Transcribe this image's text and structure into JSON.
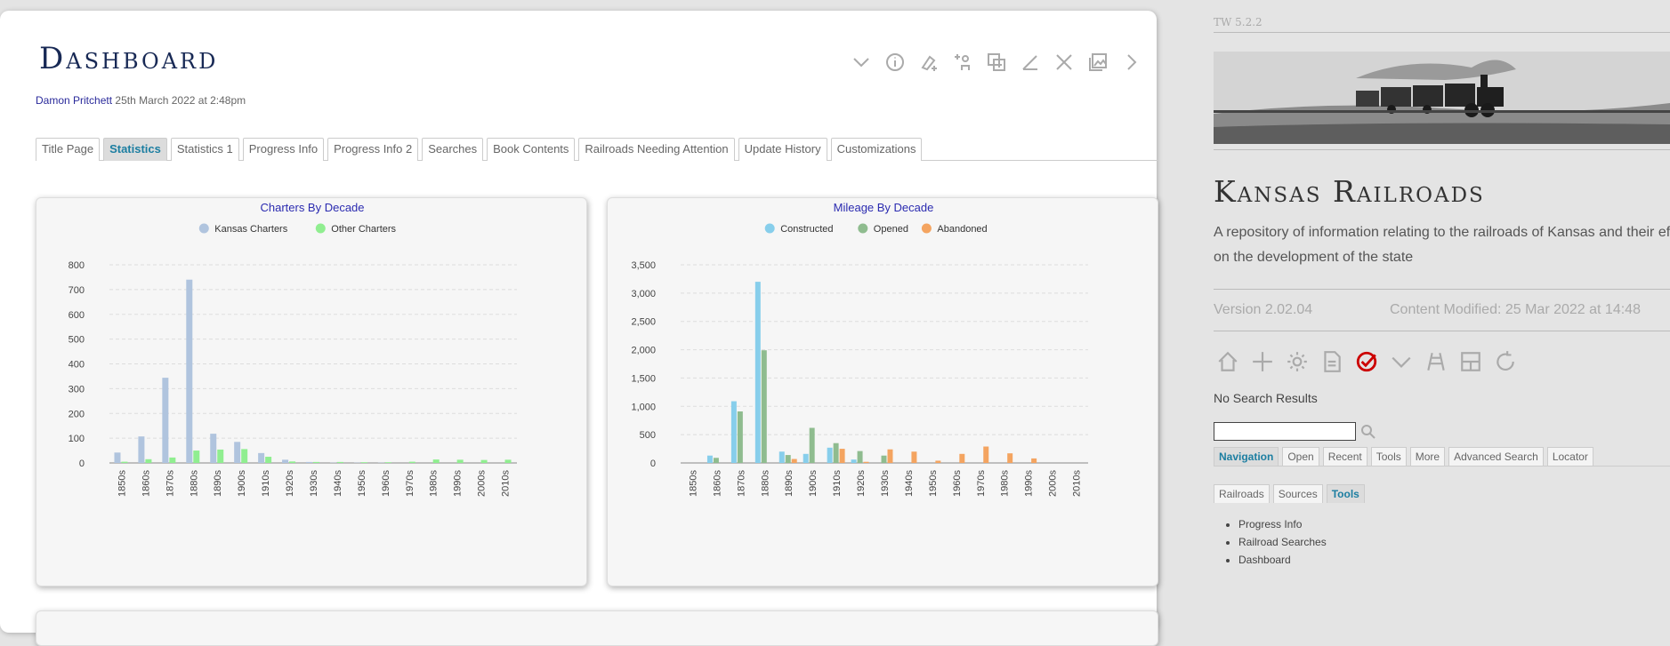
{
  "tiddler": {
    "title": "Dashboard",
    "author": "Damon Pritchett",
    "date": "25th March 2022 at 2:48pm",
    "toolbar": [
      "chevron-down-icon",
      "info-icon",
      "paint-icon",
      "permissions-icon",
      "clone-icon",
      "edit-icon",
      "close-icon",
      "image-icon",
      "chevron-right-icon"
    ],
    "tabs": [
      "Title Page",
      "Statistics",
      "Statistics 1",
      "Progress Info",
      "Progress Info 2",
      "Searches",
      "Book Contents",
      "Railroads Needing Attention",
      "Update History",
      "Customizations"
    ],
    "active_tab": "Statistics"
  },
  "chart_data": [
    {
      "type": "bar",
      "title": "Charters By Decade",
      "legend_position": "top",
      "grid": true,
      "categories": [
        "1850s",
        "1860s",
        "1870s",
        "1880s",
        "1890s",
        "1900s",
        "1910s",
        "1920s",
        "1930s",
        "1940s",
        "1950s",
        "1960s",
        "1970s",
        "1980s",
        "1990s",
        "2000s",
        "2010s"
      ],
      "ylim": [
        0,
        800
      ],
      "yticks": [
        "0",
        "100",
        "200",
        "300",
        "400",
        "500",
        "600",
        "700",
        "800"
      ],
      "series": [
        {
          "name": "Kansas Charters",
          "color": "#b0c4de",
          "values": [
            42,
            107,
            344,
            740,
            118,
            85,
            40,
            13,
            4,
            1,
            1,
            1,
            0,
            0,
            0,
            0,
            0
          ]
        },
        {
          "name": "Other Charters",
          "color": "#90ee90",
          "values": [
            5,
            15,
            22,
            50,
            54,
            56,
            25,
            6,
            4,
            4,
            3,
            3,
            5,
            14,
            13,
            12,
            13
          ]
        }
      ]
    },
    {
      "type": "bar",
      "title": "Mileage By Decade",
      "legend_position": "top",
      "grid": true,
      "categories": [
        "1850s",
        "1860s",
        "1870s",
        "1880s",
        "1890s",
        "1900s",
        "1910s",
        "1920s",
        "1930s",
        "1940s",
        "1950s",
        "1960s",
        "1970s",
        "1980s",
        "1990s",
        "2000s",
        "2010s"
      ],
      "ylim": [
        0,
        3500
      ],
      "yticks": [
        "0",
        "500",
        "1,000",
        "1,500",
        "2,000",
        "2,500",
        "3,000",
        "3,500"
      ],
      "series": [
        {
          "name": "Constructed",
          "color": "#87ceeb",
          "values": [
            0,
            130,
            1090,
            3200,
            200,
            160,
            270,
            60,
            0,
            0,
            0,
            0,
            0,
            0,
            0,
            0,
            0
          ]
        },
        {
          "name": "Opened",
          "color": "#8fbc8f",
          "values": [
            0,
            90,
            910,
            1990,
            140,
            620,
            350,
            210,
            130,
            0,
            0,
            0,
            0,
            0,
            0,
            0,
            0
          ]
        },
        {
          "name": "Abandoned",
          "color": "#f4a460",
          "values": [
            0,
            0,
            0,
            0,
            70,
            0,
            250,
            20,
            240,
            200,
            40,
            160,
            290,
            170,
            80,
            0,
            0
          ]
        }
      ]
    }
  ],
  "sidebar": {
    "version_tag": "TW 5.2.2",
    "site_title": "Kansas Railroads",
    "site_subtitle": "A repository of information relating to the railroads of Kansas and their effect on the development of the state",
    "version": "Version 2.02.04",
    "content_modified": "Content Modified: 25 Mar 2022 at 14:48",
    "page_controls": [
      "home-icon",
      "new-tiddler-icon",
      "control-panel-icon",
      "new-journal-icon",
      "check-icon",
      "more-icon",
      "railroad-icon",
      "layout-icon",
      "refresh-icon"
    ],
    "no_results": "No Search Results",
    "search": {
      "value": ""
    },
    "tabs": [
      "Navigation",
      "Open",
      "Recent",
      "Tools",
      "More",
      "Advanced Search",
      "Locator"
    ],
    "active_tab": "Navigation",
    "subtabs": [
      "Railroads",
      "Sources",
      "Tools"
    ],
    "active_subtab": "Tools",
    "tools": [
      "Progress Info",
      "Railroad Searches",
      "Dashboard"
    ]
  }
}
